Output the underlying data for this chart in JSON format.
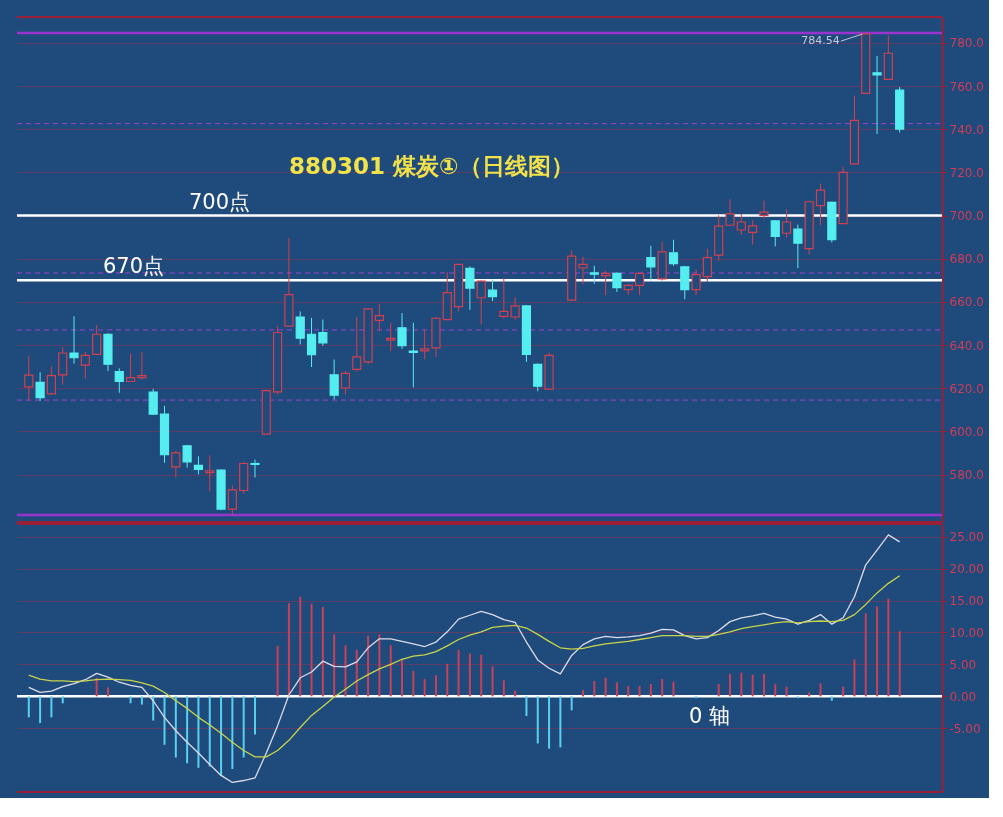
{
  "chart_data": [
    {
      "type": "candlestick",
      "title": "880301 煤炭①（日线图）",
      "categories": [
        null,
        null,
        null,
        null,
        null,
        null,
        null,
        null,
        null,
        null,
        null,
        null,
        null,
        null,
        null,
        null,
        null,
        null,
        null,
        null,
        null,
        null,
        null,
        null,
        null,
        null,
        null,
        null,
        null,
        null,
        null,
        null,
        null,
        null,
        null,
        null,
        null,
        null,
        null,
        null,
        null,
        null,
        null,
        null,
        null,
        null,
        null,
        null,
        null,
        null,
        null,
        null,
        null,
        null,
        null,
        null,
        null,
        null,
        null,
        null,
        null,
        null,
        null,
        null,
        null,
        null,
        null,
        null,
        null,
        null,
        null,
        null,
        null,
        null,
        null,
        null,
        null,
        null
      ],
      "ohlc": [
        [
          620.6,
          634.9,
          614.1,
          626.1
        ],
        [
          622.7,
          627.4,
          614.1,
          615.6
        ],
        [
          617.4,
          630.0,
          617.1,
          625.8
        ],
        [
          626.2,
          639.0,
          621.6,
          636.3
        ],
        [
          636.3,
          653.3,
          631.4,
          634.1
        ],
        [
          630.7,
          636.7,
          624.4,
          635.2
        ],
        [
          635.7,
          649.2,
          635.5,
          645.0
        ],
        [
          645.0,
          645.5,
          628.0,
          631.1
        ],
        [
          627.7,
          629.2,
          617.9,
          623.1
        ],
        [
          623.1,
          636.0,
          623.1,
          624.9
        ],
        [
          624.9,
          636.7,
          623.9,
          625.8
        ],
        [
          618.2,
          619.7,
          607.6,
          608.0
        ],
        [
          608.0,
          611.8,
          585.4,
          589.2
        ],
        [
          583.5,
          591.0,
          578.6,
          590.0
        ],
        [
          593.3,
          593.7,
          583.2,
          585.9
        ],
        [
          584.2,
          588.4,
          580.1,
          582.4
        ],
        [
          580.9,
          588.9,
          572.2,
          581.7
        ],
        [
          582.0,
          582.4,
          563.5,
          564.0
        ],
        [
          564.0,
          574.9,
          561.3,
          572.9
        ],
        [
          572.6,
          585.9,
          571.1,
          585.1
        ],
        [
          585.1,
          586.9,
          578.6,
          584.7
        ],
        [
          598.7,
          619.4,
          598.7,
          618.9
        ],
        [
          618.3,
          648.8,
          617.1,
          645.8
        ],
        [
          648.8,
          689.5,
          648.8,
          663.4
        ],
        [
          653.0,
          655.6,
          640.3,
          643.2
        ],
        [
          645.0,
          652.6,
          629.8,
          635.5
        ],
        [
          645.8,
          651.8,
          639.7,
          641.0
        ],
        [
          626.2,
          633.3,
          614.8,
          616.8
        ],
        [
          620.1,
          628.0,
          617.1,
          626.9
        ],
        [
          628.7,
          652.9,
          627.7,
          634.5
        ],
        [
          632.2,
          657.1,
          631.0,
          656.8
        ],
        [
          651.4,
          659.0,
          646.5,
          653.6
        ],
        [
          642.3,
          650.3,
          637.2,
          643.1
        ],
        [
          648.0,
          654.8,
          638.2,
          639.7
        ],
        [
          637.2,
          650.3,
          620.4,
          636.6
        ],
        [
          637.3,
          647.0,
          633.4,
          638.2
        ],
        [
          638.7,
          653.0,
          634.5,
          652.4
        ],
        [
          651.8,
          673.7,
          651.8,
          664.3
        ],
        [
          657.8,
          677.7,
          655.6,
          677.4
        ],
        [
          675.5,
          676.4,
          656.3,
          666.4
        ],
        [
          661.9,
          669.9,
          649.5,
          669.6
        ],
        [
          665.4,
          670.4,
          660.4,
          662.4
        ],
        [
          653.3,
          671.0,
          652.3,
          655.6
        ],
        [
          653.0,
          662.1,
          651.8,
          658.1
        ],
        [
          658.1,
          658.5,
          632.2,
          635.7
        ],
        [
          631.0,
          631.5,
          618.6,
          620.9
        ],
        [
          619.6,
          636.5,
          619.4,
          635.2
        ],
        null,
        [
          660.8,
          683.8,
          660.8,
          681.2
        ],
        [
          675.7,
          680.8,
          668.3,
          677.4
        ],
        [
          673.4,
          676.7,
          668.4,
          672.8
        ],
        [
          672.2,
          674.4,
          663.1,
          673.2
        ],
        [
          673.2,
          673.7,
          664.6,
          666.6
        ],
        [
          665.7,
          668.4,
          663.1,
          667.6
        ],
        [
          667.6,
          673.2,
          663.1,
          673.2
        ],
        [
          680.5,
          686.0,
          669.9,
          676.2
        ],
        [
          670.7,
          687.7,
          669.9,
          683.2
        ],
        [
          682.7,
          688.8,
          676.7,
          677.7
        ],
        [
          676.2,
          676.7,
          661.2,
          665.7
        ],
        [
          665.7,
          674.9,
          663.1,
          672.6
        ],
        [
          671.7,
          684.7,
          669.1,
          680.5
        ],
        [
          681.7,
          700.1,
          678.9,
          695.1
        ],
        [
          695.5,
          707.6,
          695.5,
          700.8
        ],
        [
          693.3,
          700.8,
          691.0,
          697.0
        ],
        [
          692.2,
          697.8,
          686.5,
          695.2
        ],
        [
          700.1,
          706.9,
          698.6,
          701.6
        ],
        [
          697.5,
          697.9,
          685.7,
          690.3
        ],
        [
          691.8,
          702.8,
          689.8,
          697.0
        ],
        [
          693.7,
          695.8,
          675.6,
          687.2
        ],
        [
          684.7,
          706.9,
          682.0,
          706.4
        ],
        [
          704.6,
          714.8,
          695.5,
          711.8
        ],
        [
          706.1,
          706.5,
          687.5,
          688.8
        ],
        [
          696.3,
          722.7,
          696.3,
          720.0
        ],
        [
          723.9,
          755.6,
          723.9,
          744.1
        ],
        [
          756.6,
          784.54,
          756.6,
          784.2
        ],
        [
          766.1,
          774.0,
          737.8,
          765.2
        ],
        [
          763.1,
          783.5,
          763.1,
          775.2
        ],
        [
          758.1,
          759.6,
          738.5,
          740.0
        ]
      ],
      "colors": [
        "#d2404f",
        "#55eef0",
        "#d2404f",
        "#d2404f",
        "#55eef0",
        "#d2404f",
        "#d2404f",
        "#55eef0",
        "#55eef0",
        "#d2404f",
        "#d2404f",
        "#55eef0",
        "#55eef0",
        "#d2404f",
        "#55eef0",
        "#55eef0",
        "#d2404f",
        "#55eef0",
        "#d2404f",
        "#d2404f",
        "#55eef0",
        "#d2404f",
        "#d2404f",
        "#d2404f",
        "#55eef0",
        "#55eef0",
        "#55eef0",
        "#55eef0",
        "#d2404f",
        "#d2404f",
        "#d2404f",
        "#d2404f",
        "#d2404f",
        "#55eef0",
        "#55eef0",
        "#d2404f",
        "#d2404f",
        "#d2404f",
        "#d2404f",
        "#55eef0",
        "#d2404f",
        "#55eef0",
        "#d2404f",
        "#d2404f",
        "#55eef0",
        "#55eef0",
        "#d2404f",
        null,
        "#d2404f",
        "#d2404f",
        "#55eef0",
        "#d2404f",
        "#55eef0",
        "#d2404f",
        "#d2404f",
        "#55eef0",
        "#d2404f",
        "#55eef0",
        "#55eef0",
        "#d2404f",
        "#d2404f",
        "#d2404f",
        "#d2404f",
        "#d2404f",
        "#d2404f",
        "#d2404f",
        "#55eef0",
        "#d2404f",
        "#55eef0",
        "#d2404f",
        "#d2404f",
        "#55eef0",
        "#d2404f",
        "#d2404f",
        "#d2404f",
        "#55eef0",
        "#d2404f",
        "#55eef0"
      ],
      "ylim": [
        558,
        792
      ],
      "yticks": [
        {
          "value": 580,
          "label": "580.0"
        },
        {
          "value": 600,
          "label": "600.0"
        },
        {
          "value": 620,
          "label": "620.0"
        },
        {
          "value": 640,
          "label": "640.0"
        },
        {
          "value": 660,
          "label": "660.0"
        },
        {
          "value": 680,
          "label": "680.0"
        },
        {
          "value": 700,
          "label": "700.0"
        },
        {
          "value": 720,
          "label": "720.0"
        },
        {
          "value": 740,
          "label": "740.0"
        },
        {
          "value": 760,
          "label": "760.0"
        },
        {
          "value": 780,
          "label": "780.0"
        }
      ],
      "grid": "y",
      "tick_labels": "y",
      "ref_lines": [
        {
          "axis": "y",
          "value": 784.54,
          "color": "#9a34d0",
          "line_style": "solid"
        },
        {
          "axis": "y",
          "value": 742.6,
          "color": "#a040d8",
          "line_style": "dashed"
        },
        {
          "axis": "y",
          "value": 700,
          "label": "700点",
          "color": "#ffffff",
          "line_style": "solid"
        },
        {
          "axis": "y",
          "value": 673.4,
          "color": "#a040d8",
          "line_style": "dashed"
        },
        {
          "axis": "y",
          "value": 670,
          "label": "670点",
          "color": "#ffffff",
          "line_style": "solid"
        },
        {
          "axis": "y",
          "value": 647.0,
          "color": "#a040d8",
          "line_style": "dashed"
        },
        {
          "axis": "y",
          "value": 614.5,
          "color": "#a040d8",
          "line_style": "dashed"
        },
        {
          "axis": "y",
          "value": 561.3,
          "color": "#9a34d0",
          "line_style": "solid"
        }
      ],
      "annotations": [
        {
          "text": "784.54",
          "y": 784.54
        }
      ]
    },
    {
      "type": "bar",
      "categories": [
        null,
        null,
        null,
        null,
        null,
        null,
        null,
        null,
        null,
        null,
        null,
        null,
        null,
        null,
        null,
        null,
        null,
        null,
        null,
        null,
        null,
        null,
        null,
        null,
        null,
        null,
        null,
        null,
        null,
        null,
        null,
        null,
        null,
        null,
        null,
        null,
        null,
        null,
        null,
        null,
        null,
        null,
        null,
        null,
        null,
        null,
        null,
        null,
        null,
        null,
        null,
        null,
        null,
        null,
        null,
        null,
        null,
        null,
        null,
        null,
        null,
        null,
        null,
        null,
        null,
        null,
        null,
        null,
        null,
        null,
        null,
        null,
        null,
        null,
        null,
        null,
        null,
        null
      ],
      "series": [
        {
          "type": "bar",
          "values": [
            -3.3,
            -4.2,
            -3.3,
            -1.1,
            null,
            null,
            2.9,
            1.4,
            null,
            -1.1,
            -1.3,
            -3.8,
            -7.6,
            -9.6,
            -10.5,
            -11.2,
            -11.0,
            -12.5,
            -11.4,
            -9.6,
            -6.0,
            null,
            7.9,
            14.6,
            15.6,
            14.5,
            14.0,
            9.7,
            8.0,
            7.3,
            9.5,
            9.7,
            8.0,
            5.8,
            4.0,
            2.7,
            3.3,
            5.1,
            7.3,
            6.7,
            6.5,
            4.7,
            2.5,
            0.9,
            -3.1,
            -7.4,
            -8.2,
            -8.0,
            -2.2,
            1.0,
            2.4,
            2.9,
            2.2,
            1.6,
            1.6,
            1.9,
            2.7,
            2.3,
            null,
            -0.3,
            null,
            1.9,
            3.5,
            3.7,
            3.4,
            3.5,
            1.9,
            1.5,
            -0.3,
            0.6,
            2.0,
            -0.7,
            1.5,
            5.8,
            13.0,
            14.1,
            15.3,
            10.2
          ],
          "colors": [
            "#58d0f0",
            "#58d0f0",
            "#58d0f0",
            "#58d0f0",
            "#c8405a",
            "#c8405a",
            "#c8405a",
            "#c8405a",
            "#c8405a",
            "#58d0f0",
            "#58d0f0",
            "#58d0f0",
            "#58d0f0",
            "#58d0f0",
            "#58d0f0",
            "#58d0f0",
            "#58d0f0",
            "#58d0f0",
            "#58d0f0",
            "#58d0f0",
            "#58d0f0",
            "#c8405a",
            "#c8405a",
            "#c8405a",
            "#c8405a",
            "#c8405a",
            "#c8405a",
            "#c8405a",
            "#c8405a",
            "#c8405a",
            "#c8405a",
            "#c8405a",
            "#c8405a",
            "#c8405a",
            "#c8405a",
            "#c8405a",
            "#c8405a",
            "#c8405a",
            "#c8405a",
            "#c8405a",
            "#c8405a",
            "#c8405a",
            "#c8405a",
            "#c8405a",
            "#58d0f0",
            "#58d0f0",
            "#58d0f0",
            "#58d0f0",
            "#58d0f0",
            "#c8405a",
            "#c8405a",
            "#c8405a",
            "#c8405a",
            "#c8405a",
            "#c8405a",
            "#c8405a",
            "#c8405a",
            "#c8405a",
            "#c8405a",
            "#58d0f0",
            "#c8405a",
            "#c8405a",
            "#c8405a",
            "#c8405a",
            "#c8405a",
            "#c8405a",
            "#c8405a",
            "#c8405a",
            "#58d0f0",
            "#c8405a",
            "#c8405a",
            "#58d0f0",
            "#c8405a",
            "#c8405a",
            "#c8405a",
            "#c8405a",
            "#c8405a",
            "#c8405a"
          ]
        },
        {
          "type": "line",
          "color": "#dcdce8",
          "values": [
            1.4,
            0.6,
            0.8,
            1.5,
            2.0,
            2.6,
            3.6,
            3.0,
            2.2,
            1.7,
            1.4,
            -0.7,
            -3.3,
            -5.4,
            -7.2,
            -8.9,
            -10.7,
            -12.4,
            -13.5,
            -13.2,
            -12.8,
            -8.9,
            -4.6,
            0.2,
            2.9,
            3.8,
            5.5,
            4.7,
            4.6,
            5.4,
            7.6,
            9.0,
            9.0,
            8.6,
            8.2,
            7.8,
            8.5,
            10.1,
            12.1,
            12.7,
            13.3,
            12.8,
            12.0,
            11.6,
            8.5,
            5.7,
            4.4,
            3.5,
            6.4,
            8.1,
            9.0,
            9.4,
            9.2,
            9.3,
            9.5,
            9.9,
            10.5,
            10.4,
            9.5,
            9.0,
            9.2,
            10.3,
            11.7,
            12.3,
            12.6,
            13.0,
            12.4,
            12.1,
            11.3,
            11.9,
            12.8,
            11.3,
            12.3,
            15.6,
            20.6,
            22.9,
            25.3,
            24.2
          ]
        },
        {
          "type": "line",
          "color": "#c8d44a",
          "values": [
            3.3,
            2.7,
            2.4,
            2.4,
            2.3,
            2.4,
            2.6,
            2.7,
            2.6,
            2.5,
            2.1,
            1.6,
            0.6,
            -0.7,
            -1.9,
            -3.3,
            -4.5,
            -5.8,
            -7.2,
            -8.5,
            -9.5,
            -9.5,
            -8.5,
            -6.9,
            -4.9,
            -3.0,
            -1.6,
            -0.1,
            1.1,
            2.4,
            3.4,
            4.3,
            5.0,
            5.8,
            6.3,
            6.5,
            7.0,
            7.9,
            8.9,
            9.6,
            10.1,
            10.8,
            11.0,
            11.1,
            10.7,
            9.7,
            8.6,
            7.6,
            7.4,
            7.5,
            7.9,
            8.2,
            8.4,
            8.6,
            8.9,
            9.2,
            9.5,
            9.5,
            9.5,
            9.4,
            9.4,
            9.7,
            10.1,
            10.6,
            10.9,
            11.2,
            11.5,
            11.7,
            11.5,
            11.7,
            11.8,
            11.7,
            11.9,
            12.8,
            14.4,
            16.2,
            17.7,
            18.9
          ]
        }
      ],
      "ylim": [
        -15,
        27
      ],
      "yticks": [
        {
          "value": -5,
          "label": "-5.00"
        },
        {
          "value": 0,
          "label": "0.00"
        },
        {
          "value": 5,
          "label": "5.00"
        },
        {
          "value": 10,
          "label": "10.00"
        },
        {
          "value": 15,
          "label": "15.00"
        },
        {
          "value": 20,
          "label": "20.00"
        },
        {
          "value": 25,
          "label": "25.00"
        }
      ],
      "grid": "y",
      "tick_labels": "y",
      "ref_lines": [
        {
          "axis": "y",
          "value": 0,
          "label": "0 轴",
          "color": "#ffffff",
          "line_style": "solid"
        }
      ]
    }
  ]
}
